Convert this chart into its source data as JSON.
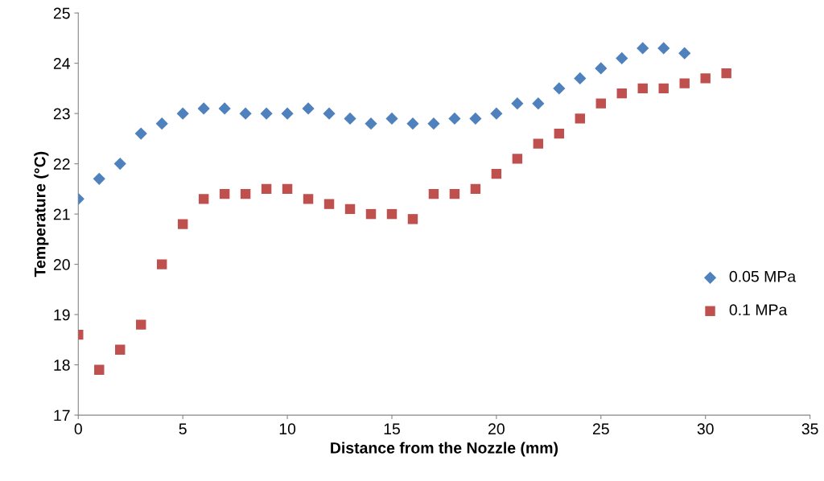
{
  "chart_data": {
    "type": "scatter",
    "xlabel": "Distance from the Nozzle (mm)",
    "ylabel": "Temperature (°C)",
    "xlim": [
      0,
      35
    ],
    "xticks": [
      0,
      5,
      10,
      15,
      20,
      25,
      30,
      35
    ],
    "ylim": [
      17,
      25
    ],
    "yticks": [
      17,
      18,
      19,
      20,
      21,
      22,
      23,
      24,
      25
    ],
    "grid": false,
    "legend": "right",
    "series": [
      {
        "name": "0.05 MPa",
        "color": "#4f81bd",
        "marker": "diamond",
        "x": [
          0,
          1,
          2,
          3,
          4,
          5,
          6,
          7,
          8,
          9,
          10,
          11,
          12,
          13,
          14,
          15,
          16,
          17,
          18,
          19,
          20,
          21,
          22,
          23,
          24,
          25,
          26,
          27,
          28,
          29
        ],
        "values": [
          21.3,
          21.7,
          22.0,
          22.6,
          22.8,
          23.0,
          23.1,
          23.1,
          23.0,
          23.0,
          23.0,
          23.1,
          23.0,
          22.9,
          22.8,
          22.9,
          22.8,
          22.8,
          22.9,
          22.9,
          23.0,
          23.2,
          23.2,
          23.5,
          23.7,
          23.9,
          24.1,
          24.3,
          24.3,
          24.2
        ]
      },
      {
        "name": "0.1 MPa",
        "color": "#c0504d",
        "marker": "square",
        "x": [
          0,
          1,
          2,
          3,
          4,
          5,
          6,
          7,
          8,
          9,
          10,
          11,
          12,
          13,
          14,
          15,
          16,
          17,
          18,
          19,
          20,
          21,
          22,
          23,
          24,
          25,
          26,
          27,
          28,
          29,
          30,
          31
        ],
        "values": [
          18.6,
          17.9,
          18.3,
          18.8,
          20.0,
          20.8,
          21.3,
          21.4,
          21.4,
          21.5,
          21.5,
          21.3,
          21.2,
          21.1,
          21.0,
          21.0,
          20.9,
          21.4,
          21.4,
          21.5,
          21.8,
          22.1,
          22.4,
          22.6,
          22.9,
          23.2,
          23.4,
          23.5,
          23.5,
          23.6,
          23.7,
          23.8
        ]
      }
    ]
  }
}
